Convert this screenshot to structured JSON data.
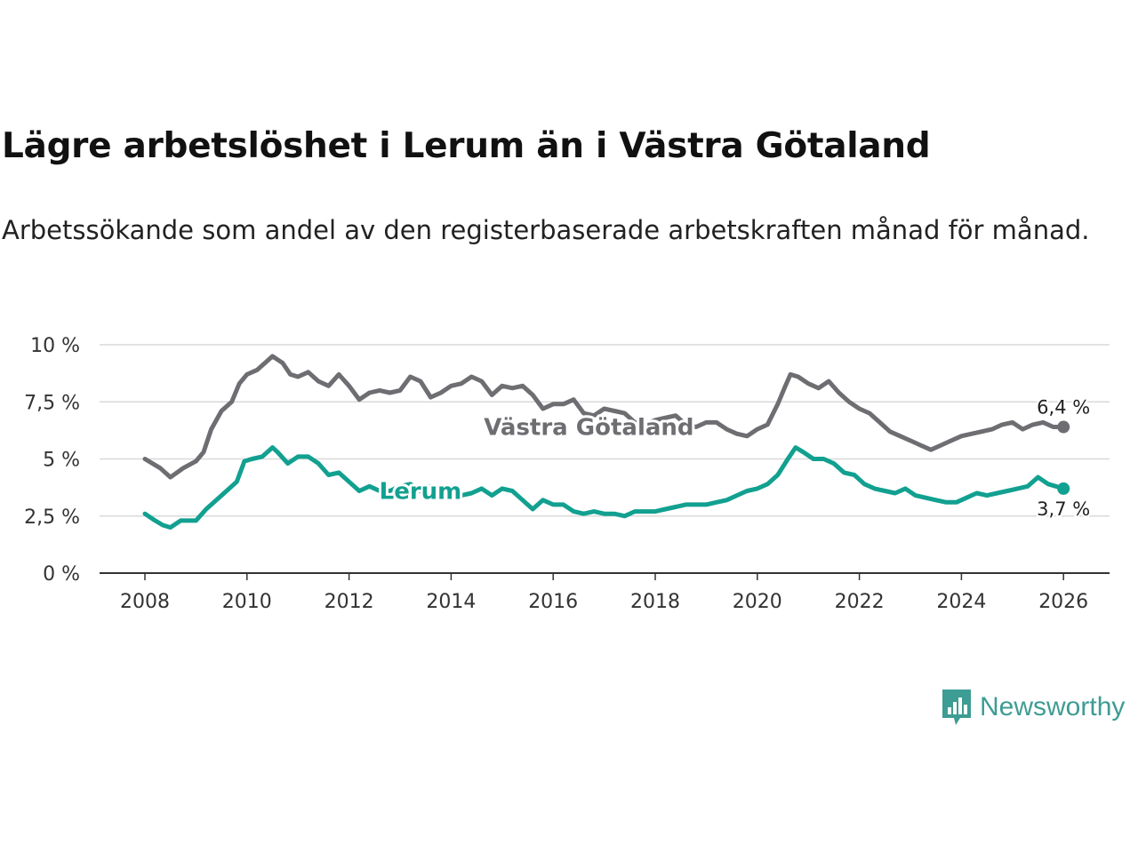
{
  "header": {
    "title": "Lägre arbetslöshet i Lerum än i Västra Götaland",
    "subtitle": "Arbetssökande som andel av den registerbaserade arbetskraften månad för månad."
  },
  "brand": {
    "name": "Newsworthy",
    "icon": "newsworthy-logo-icon",
    "color": "#3d9c94"
  },
  "colors": {
    "lerum": "#12a090",
    "vastra": "#6e6e72",
    "grid": "#d9d9d9",
    "axis": "#333333"
  },
  "chart_data": {
    "type": "line",
    "title": "Lägre arbetslöshet i Lerum än i Västra Götaland",
    "xlabel": "",
    "ylabel": "",
    "xlim": [
      2007.1,
      2026.9
    ],
    "ylim": [
      0,
      10
    ],
    "x_ticks": [
      2008,
      2010,
      2012,
      2014,
      2016,
      2018,
      2020,
      2022,
      2024,
      2026
    ],
    "x_tick_labels": [
      "2008",
      "2010",
      "2012",
      "2014",
      "2016",
      "2018",
      "2020",
      "2022",
      "2024",
      "2026"
    ],
    "y_ticks": [
      0,
      2.5,
      5,
      7.5,
      10
    ],
    "y_tick_labels": [
      "0 %",
      "2,5 %",
      "5 %",
      "7,5 %",
      "10 %"
    ],
    "grid": true,
    "series": [
      {
        "name": "Västra Götaland",
        "label": "Västra Götaland",
        "color": "#6e6e72",
        "end_value": 6.4,
        "end_label": "6,4 %",
        "points": [
          [
            2008.0,
            5.0
          ],
          [
            2008.3,
            4.6
          ],
          [
            2008.5,
            4.2
          ],
          [
            2008.75,
            4.6
          ],
          [
            2009.0,
            4.9
          ],
          [
            2009.15,
            5.3
          ],
          [
            2009.3,
            6.3
          ],
          [
            2009.5,
            7.1
          ],
          [
            2009.7,
            7.5
          ],
          [
            2009.85,
            8.3
          ],
          [
            2010.0,
            8.7
          ],
          [
            2010.2,
            8.9
          ],
          [
            2010.35,
            9.2
          ],
          [
            2010.5,
            9.5
          ],
          [
            2010.7,
            9.2
          ],
          [
            2010.85,
            8.7
          ],
          [
            2011.0,
            8.6
          ],
          [
            2011.2,
            8.8
          ],
          [
            2011.4,
            8.4
          ],
          [
            2011.6,
            8.2
          ],
          [
            2011.8,
            8.7
          ],
          [
            2012.0,
            8.2
          ],
          [
            2012.2,
            7.6
          ],
          [
            2012.4,
            7.9
          ],
          [
            2012.6,
            8.0
          ],
          [
            2012.8,
            7.9
          ],
          [
            2013.0,
            8.0
          ],
          [
            2013.2,
            8.6
          ],
          [
            2013.4,
            8.4
          ],
          [
            2013.6,
            7.7
          ],
          [
            2013.8,
            7.9
          ],
          [
            2014.0,
            8.2
          ],
          [
            2014.2,
            8.3
          ],
          [
            2014.4,
            8.6
          ],
          [
            2014.6,
            8.4
          ],
          [
            2014.8,
            7.8
          ],
          [
            2015.0,
            8.2
          ],
          [
            2015.2,
            8.1
          ],
          [
            2015.4,
            8.2
          ],
          [
            2015.6,
            7.8
          ],
          [
            2015.8,
            7.2
          ],
          [
            2016.0,
            7.4
          ],
          [
            2016.2,
            7.4
          ],
          [
            2016.4,
            7.6
          ],
          [
            2016.6,
            7.0
          ],
          [
            2016.8,
            6.9
          ],
          [
            2017.0,
            7.2
          ],
          [
            2017.2,
            7.1
          ],
          [
            2017.4,
            7.0
          ],
          [
            2017.6,
            6.6
          ],
          [
            2017.8,
            6.5
          ],
          [
            2018.0,
            6.7
          ],
          [
            2018.2,
            6.8
          ],
          [
            2018.4,
            6.9
          ],
          [
            2018.6,
            6.5
          ],
          [
            2018.8,
            6.4
          ],
          [
            2019.0,
            6.6
          ],
          [
            2019.2,
            6.6
          ],
          [
            2019.4,
            6.3
          ],
          [
            2019.6,
            6.1
          ],
          [
            2019.8,
            6.0
          ],
          [
            2020.0,
            6.3
          ],
          [
            2020.2,
            6.5
          ],
          [
            2020.4,
            7.4
          ],
          [
            2020.55,
            8.2
          ],
          [
            2020.65,
            8.7
          ],
          [
            2020.8,
            8.6
          ],
          [
            2021.0,
            8.3
          ],
          [
            2021.2,
            8.1
          ],
          [
            2021.4,
            8.4
          ],
          [
            2021.6,
            7.9
          ],
          [
            2021.8,
            7.5
          ],
          [
            2022.0,
            7.2
          ],
          [
            2022.2,
            7.0
          ],
          [
            2022.4,
            6.6
          ],
          [
            2022.6,
            6.2
          ],
          [
            2022.8,
            6.0
          ],
          [
            2023.0,
            5.8
          ],
          [
            2023.2,
            5.6
          ],
          [
            2023.4,
            5.4
          ],
          [
            2023.6,
            5.6
          ],
          [
            2023.8,
            5.8
          ],
          [
            2024.0,
            6.0
          ],
          [
            2024.2,
            6.1
          ],
          [
            2024.4,
            6.2
          ],
          [
            2024.6,
            6.3
          ],
          [
            2024.8,
            6.5
          ],
          [
            2025.0,
            6.6
          ],
          [
            2025.2,
            6.3
          ],
          [
            2025.4,
            6.5
          ],
          [
            2025.6,
            6.6
          ],
          [
            2025.8,
            6.4
          ],
          [
            2026.0,
            6.4
          ]
        ]
      },
      {
        "name": "Lerum",
        "label": "Lerum",
        "color": "#12a090",
        "end_value": 3.7,
        "end_label": "3,7 %",
        "points": [
          [
            2008.0,
            2.6
          ],
          [
            2008.2,
            2.3
          ],
          [
            2008.35,
            2.1
          ],
          [
            2008.5,
            2.0
          ],
          [
            2008.7,
            2.3
          ],
          [
            2009.0,
            2.3
          ],
          [
            2009.2,
            2.8
          ],
          [
            2009.4,
            3.2
          ],
          [
            2009.6,
            3.6
          ],
          [
            2009.8,
            4.0
          ],
          [
            2009.95,
            4.9
          ],
          [
            2010.1,
            5.0
          ],
          [
            2010.3,
            5.1
          ],
          [
            2010.5,
            5.5
          ],
          [
            2010.6,
            5.3
          ],
          [
            2010.8,
            4.8
          ],
          [
            2011.0,
            5.1
          ],
          [
            2011.2,
            5.1
          ],
          [
            2011.4,
            4.8
          ],
          [
            2011.6,
            4.3
          ],
          [
            2011.8,
            4.4
          ],
          [
            2012.0,
            4.0
          ],
          [
            2012.2,
            3.6
          ],
          [
            2012.4,
            3.8
          ],
          [
            2012.6,
            3.6
          ],
          [
            2012.8,
            3.6
          ],
          [
            2013.0,
            3.8
          ],
          [
            2013.2,
            3.9
          ],
          [
            2013.4,
            3.6
          ],
          [
            2013.6,
            3.8
          ],
          [
            2013.8,
            3.7
          ],
          [
            2014.0,
            3.5
          ],
          [
            2014.2,
            3.4
          ],
          [
            2014.4,
            3.5
          ],
          [
            2014.6,
            3.7
          ],
          [
            2014.8,
            3.4
          ],
          [
            2015.0,
            3.7
          ],
          [
            2015.2,
            3.6
          ],
          [
            2015.4,
            3.2
          ],
          [
            2015.6,
            2.8
          ],
          [
            2015.8,
            3.2
          ],
          [
            2016.0,
            3.0
          ],
          [
            2016.2,
            3.0
          ],
          [
            2016.4,
            2.7
          ],
          [
            2016.6,
            2.6
          ],
          [
            2016.8,
            2.7
          ],
          [
            2017.0,
            2.6
          ],
          [
            2017.2,
            2.6
          ],
          [
            2017.4,
            2.5
          ],
          [
            2017.6,
            2.7
          ],
          [
            2017.8,
            2.7
          ],
          [
            2018.0,
            2.7
          ],
          [
            2018.2,
            2.8
          ],
          [
            2018.4,
            2.9
          ],
          [
            2018.6,
            3.0
          ],
          [
            2018.8,
            3.0
          ],
          [
            2019.0,
            3.0
          ],
          [
            2019.2,
            3.1
          ],
          [
            2019.4,
            3.2
          ],
          [
            2019.6,
            3.4
          ],
          [
            2019.8,
            3.6
          ],
          [
            2020.0,
            3.7
          ],
          [
            2020.2,
            3.9
          ],
          [
            2020.4,
            4.3
          ],
          [
            2020.6,
            5.0
          ],
          [
            2020.75,
            5.5
          ],
          [
            2020.9,
            5.3
          ],
          [
            2021.1,
            5.0
          ],
          [
            2021.3,
            5.0
          ],
          [
            2021.5,
            4.8
          ],
          [
            2021.7,
            4.4
          ],
          [
            2021.9,
            4.3
          ],
          [
            2022.1,
            3.9
          ],
          [
            2022.3,
            3.7
          ],
          [
            2022.5,
            3.6
          ],
          [
            2022.7,
            3.5
          ],
          [
            2022.9,
            3.7
          ],
          [
            2023.1,
            3.4
          ],
          [
            2023.3,
            3.3
          ],
          [
            2023.5,
            3.2
          ],
          [
            2023.7,
            3.1
          ],
          [
            2023.9,
            3.1
          ],
          [
            2024.1,
            3.3
          ],
          [
            2024.3,
            3.5
          ],
          [
            2024.5,
            3.4
          ],
          [
            2024.7,
            3.5
          ],
          [
            2024.9,
            3.6
          ],
          [
            2025.1,
            3.7
          ],
          [
            2025.3,
            3.8
          ],
          [
            2025.5,
            4.2
          ],
          [
            2025.7,
            3.9
          ],
          [
            2025.85,
            3.8
          ],
          [
            2026.0,
            3.7
          ]
        ]
      }
    ]
  }
}
